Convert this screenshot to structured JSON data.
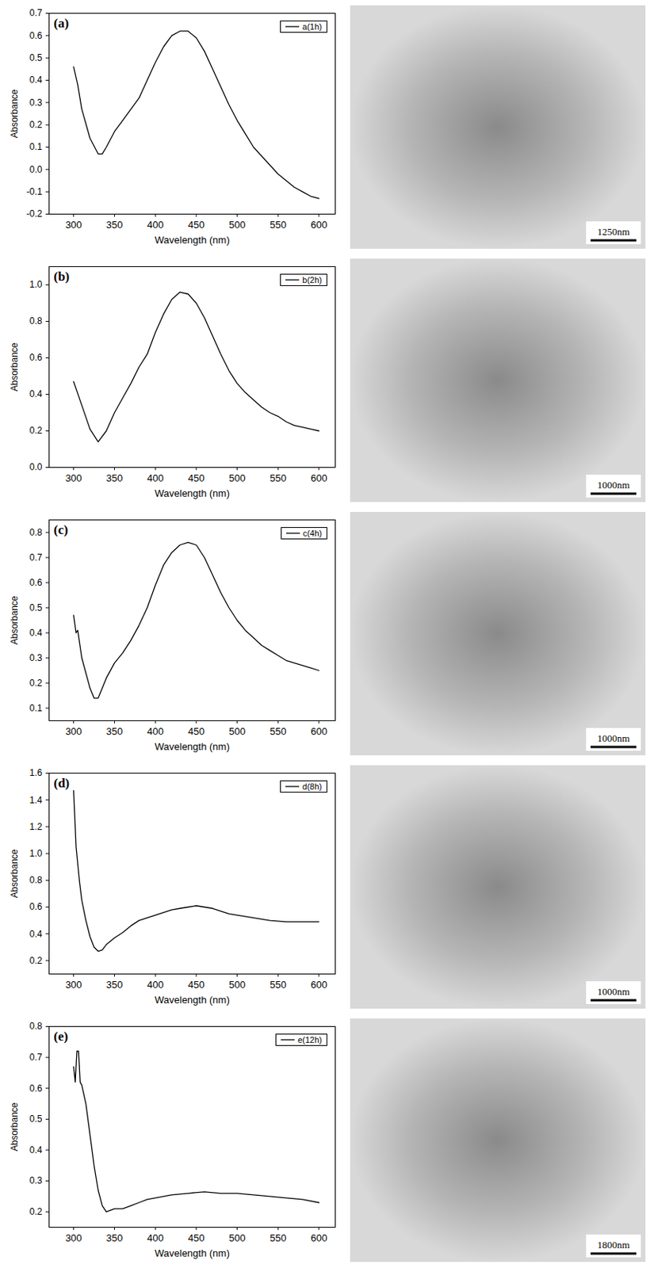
{
  "chart_data": [
    {
      "type": "line",
      "title": "(a)",
      "x_label": "Wavelength (nm)",
      "y_label": "Absorbance",
      "legend": "top-right",
      "xlim": [
        270,
        620
      ],
      "xticks": [
        300,
        350,
        400,
        450,
        500,
        550,
        600
      ],
      "ylim": [
        -0.2,
        0.7
      ],
      "yticks": [
        -0.2,
        -0.1,
        {
          "value": 0,
          "label": "0.0"
        },
        0.1,
        0.2,
        0.3,
        0.4,
        0.5,
        0.6,
        0.7
      ],
      "x": [
        300,
        305,
        310,
        320,
        330,
        335,
        340,
        350,
        360,
        370,
        380,
        390,
        400,
        410,
        420,
        430,
        440,
        450,
        460,
        470,
        480,
        490,
        500,
        510,
        520,
        530,
        540,
        550,
        560,
        570,
        580,
        590,
        600
      ],
      "series": [
        {
          "name": "a(1h)",
          "color": "#000000",
          "values": [
            0.46,
            0.38,
            0.27,
            0.14,
            0.07,
            0.07,
            0.1,
            0.17,
            0.22,
            0.27,
            0.32,
            0.4,
            0.48,
            0.55,
            0.6,
            0.62,
            0.62,
            0.59,
            0.53,
            0.45,
            0.37,
            0.29,
            0.22,
            0.16,
            0.1,
            0.06,
            0.02,
            -0.02,
            -0.05,
            -0.08,
            -0.1,
            -0.12,
            -0.13
          ]
        }
      ]
    },
    {
      "type": "line",
      "title": "(b)",
      "x_label": "Wavelength (nm)",
      "y_label": "Absorbance",
      "legend": "top-right",
      "xlim": [
        270,
        620
      ],
      "xticks": [
        300,
        350,
        400,
        450,
        500,
        550,
        600
      ],
      "ylim": [
        0,
        1.1
      ],
      "yticks": [
        {
          "value": 0,
          "label": "0.0"
        },
        0.2,
        0.4,
        0.6,
        0.8,
        {
          "value": 1,
          "label": "1.0"
        }
      ],
      "x": [
        300,
        310,
        320,
        330,
        340,
        350,
        360,
        370,
        380,
        390,
        400,
        410,
        420,
        430,
        440,
        450,
        460,
        470,
        480,
        490,
        500,
        510,
        520,
        530,
        540,
        550,
        560,
        570,
        580,
        590,
        600
      ],
      "series": [
        {
          "name": "b(2h)",
          "color": "#000000",
          "values": [
            0.47,
            0.34,
            0.21,
            0.14,
            0.2,
            0.3,
            0.38,
            0.46,
            0.55,
            0.62,
            0.74,
            0.84,
            0.92,
            0.96,
            0.95,
            0.9,
            0.82,
            0.72,
            0.62,
            0.53,
            0.46,
            0.41,
            0.37,
            0.33,
            0.3,
            0.28,
            0.25,
            0.23,
            0.22,
            0.21,
            0.2
          ]
        }
      ]
    },
    {
      "type": "line",
      "title": "(c)",
      "x_label": "Wavelength (nm)",
      "y_label": "Absorbance",
      "legend": "top-right",
      "xlim": [
        270,
        620
      ],
      "xticks": [
        300,
        350,
        400,
        450,
        500,
        550,
        600
      ],
      "ylim": [
        0.05,
        0.85
      ],
      "yticks": [
        0.1,
        0.2,
        0.3,
        0.4,
        0.5,
        0.6,
        0.7,
        0.8
      ],
      "x": [
        300,
        303,
        305,
        310,
        320,
        325,
        330,
        340,
        350,
        360,
        370,
        380,
        390,
        400,
        410,
        420,
        430,
        440,
        450,
        460,
        470,
        480,
        490,
        500,
        510,
        520,
        530,
        540,
        550,
        560,
        570,
        580,
        590,
        600
      ],
      "series": [
        {
          "name": "c(4h)",
          "color": "#000000",
          "values": [
            0.47,
            0.4,
            0.41,
            0.3,
            0.18,
            0.14,
            0.14,
            0.22,
            0.28,
            0.32,
            0.37,
            0.43,
            0.5,
            0.59,
            0.67,
            0.72,
            0.75,
            0.76,
            0.75,
            0.7,
            0.63,
            0.56,
            0.5,
            0.45,
            0.41,
            0.38,
            0.35,
            0.33,
            0.31,
            0.29,
            0.28,
            0.27,
            0.26,
            0.25
          ]
        }
      ]
    },
    {
      "type": "line",
      "title": "(d)",
      "x_label": "Wavelength (nm)",
      "y_label": "Absorbance",
      "legend": "top-right",
      "xlim": [
        270,
        620
      ],
      "xticks": [
        300,
        350,
        400,
        450,
        500,
        550,
        600
      ],
      "ylim": [
        0.1,
        1.6
      ],
      "yticks": [
        0.2,
        0.4,
        0.6,
        0.8,
        {
          "value": 1,
          "label": "1.0"
        },
        1.2,
        1.4,
        1.6
      ],
      "x": [
        300,
        303,
        307,
        310,
        315,
        320,
        325,
        330,
        335,
        340,
        350,
        360,
        370,
        380,
        390,
        400,
        410,
        420,
        430,
        440,
        450,
        460,
        470,
        480,
        490,
        500,
        520,
        540,
        560,
        580,
        600
      ],
      "series": [
        {
          "name": "d(8h)",
          "color": "#000000",
          "values": [
            1.47,
            1.05,
            0.8,
            0.65,
            0.5,
            0.38,
            0.3,
            0.27,
            0.28,
            0.32,
            0.37,
            0.41,
            0.46,
            0.5,
            0.52,
            0.54,
            0.56,
            0.58,
            0.59,
            0.6,
            0.61,
            0.6,
            0.59,
            0.57,
            0.55,
            0.54,
            0.52,
            0.5,
            0.49,
            0.49,
            0.49
          ]
        }
      ]
    },
    {
      "type": "line",
      "title": "(e)",
      "x_label": "Wavelength (nm)",
      "y_label": "Absorbance",
      "legend": "top-right",
      "xlim": [
        270,
        620
      ],
      "xticks": [
        300,
        350,
        400,
        450,
        500,
        550,
        600
      ],
      "ylim": [
        0.15,
        0.8
      ],
      "yticks": [
        0.2,
        0.3,
        0.4,
        0.5,
        0.6,
        0.7,
        0.8
      ],
      "x": [
        300,
        302,
        304,
        306,
        308,
        310,
        315,
        320,
        325,
        330,
        335,
        340,
        350,
        360,
        370,
        380,
        390,
        400,
        420,
        440,
        460,
        480,
        500,
        520,
        540,
        560,
        580,
        600
      ],
      "series": [
        {
          "name": "e(12h)",
          "color": "#000000",
          "values": [
            0.67,
            0.62,
            0.72,
            0.72,
            0.62,
            0.61,
            0.55,
            0.45,
            0.35,
            0.27,
            0.22,
            0.2,
            0.21,
            0.21,
            0.22,
            0.23,
            0.24,
            0.245,
            0.255,
            0.26,
            0.265,
            0.26,
            0.26,
            0.255,
            0.25,
            0.245,
            0.24,
            0.23
          ]
        }
      ]
    }
  ],
  "images": [
    {
      "scale_bar": "1250nm"
    },
    {
      "scale_bar": "1000nm"
    },
    {
      "scale_bar": "1000nm"
    },
    {
      "scale_bar": "1000nm"
    },
    {
      "scale_bar": "1800nm"
    }
  ]
}
